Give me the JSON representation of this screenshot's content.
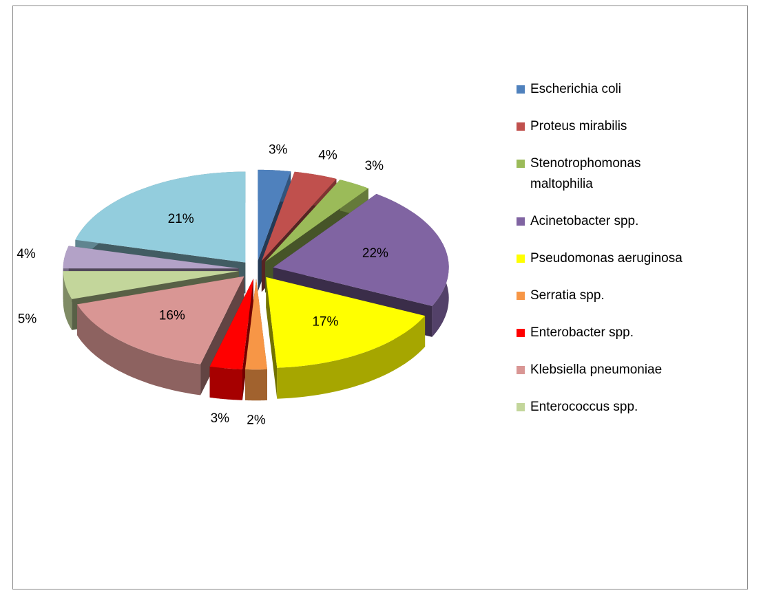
{
  "chart_data": {
    "type": "pie3d",
    "categories": [
      "Escherichia coli",
      "Proteus mirabilis",
      "Stenotrophomonas maltophilia",
      "Acinetobacter spp.",
      "Pseudomonas aeruginosa",
      "Serratia spp.",
      "Enterobacter spp.",
      "Klebsiella pneumoniae",
      "Enterococcus spp.",
      null,
      null
    ],
    "values": [
      3,
      4,
      3,
      22,
      17,
      2,
      3,
      16,
      5,
      4,
      21
    ],
    "value_labels": [
      "3%",
      "4%",
      "3%",
      "22%",
      "17%",
      "2%",
      "3%",
      "16%",
      "5%",
      "4%",
      "21%"
    ],
    "colors": [
      "#4f81bd",
      "#c0504d",
      "#9bbb59",
      "#8064a2",
      "#ffff00",
      "#f79646",
      "#ff0000",
      "#d99694",
      "#c3d69b",
      "#b3a2c7",
      "#93cddd"
    ],
    "legend": "right"
  }
}
